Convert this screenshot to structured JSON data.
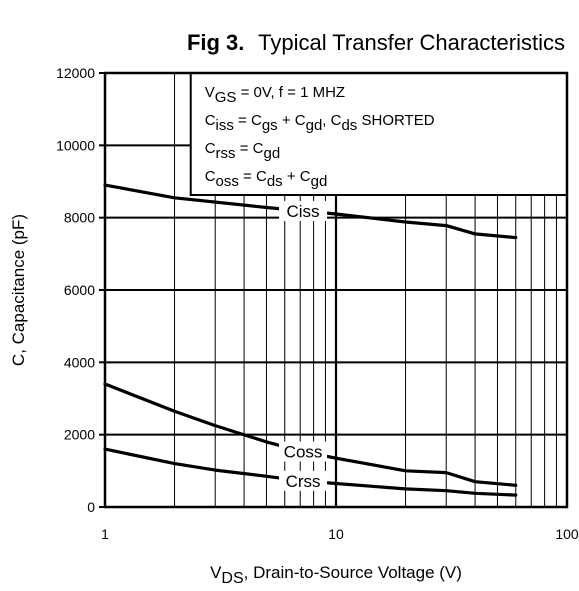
{
  "figure": {
    "label": "Fig 3.",
    "title": "Typical Transfer Characteristics"
  },
  "chart_data": {
    "type": "line",
    "xscale": "log",
    "xlim": [
      1,
      100
    ],
    "ylim": [
      0,
      12000
    ],
    "grid": true,
    "ylabel": "C, Capacitance (pF)",
    "xlabel_main": "V",
    "xlabel_sub": "DS",
    "xlabel_rest": ", Drain-to-Source Voltage (V)",
    "xticks": [
      {
        "value": 1,
        "label": "1"
      },
      {
        "value": 10,
        "label": "10"
      },
      {
        "value": 100,
        "label": "100"
      }
    ],
    "yticks": [
      {
        "value": 0,
        "label": "0"
      },
      {
        "value": 2000,
        "label": "2000"
      },
      {
        "value": 4000,
        "label": "4000"
      },
      {
        "value": 6000,
        "label": "6000"
      },
      {
        "value": 8000,
        "label": "8000"
      },
      {
        "value": 10000,
        "label": "10000"
      },
      {
        "value": 12000,
        "label": "12000"
      }
    ],
    "series": [
      {
        "name": "Ciss",
        "x": [
          1,
          2,
          5,
          10,
          20,
          30,
          40,
          60
        ],
        "y": [
          8900,
          8550,
          8280,
          8100,
          7880,
          7780,
          7550,
          7450
        ]
      },
      {
        "name": "Coss",
        "x": [
          1,
          2,
          3,
          5,
          7,
          10,
          20,
          30,
          40,
          60
        ],
        "y": [
          3400,
          2650,
          2250,
          1800,
          1550,
          1350,
          1000,
          950,
          700,
          600
        ]
      },
      {
        "name": "Crss",
        "x": [
          1,
          2,
          3,
          5,
          7,
          10,
          20,
          30,
          40,
          60
        ],
        "y": [
          1600,
          1200,
          1020,
          850,
          730,
          650,
          500,
          450,
          380,
          330
        ]
      }
    ],
    "annotations": [
      {
        "series": "Ciss",
        "text": "Ciss"
      },
      {
        "series": "Coss",
        "text": "Coss"
      },
      {
        "series": "Crss",
        "text": "Crss"
      }
    ],
    "legend": {
      "placement": "top-right",
      "lines": [
        [
          {
            "t": "V"
          },
          {
            "t": "GS",
            "sub": true
          },
          {
            "t": "  = 0V,       f = 1 MHZ"
          }
        ],
        [
          {
            "t": "C"
          },
          {
            "t": "iss",
            "sub": true
          },
          {
            "t": "  = C"
          },
          {
            "t": "gs",
            "sub": true
          },
          {
            "t": " + C"
          },
          {
            "t": "gd",
            "sub": true
          },
          {
            "t": ",  C"
          },
          {
            "t": "ds",
            "sub": true
          },
          {
            "t": " SHORTED"
          }
        ],
        [
          {
            "t": "C"
          },
          {
            "t": "rss",
            "sub": true
          },
          {
            "t": "  = C"
          },
          {
            "t": "gd",
            "sub": true
          }
        ],
        [
          {
            "t": "C"
          },
          {
            "t": "oss",
            "sub": true
          },
          {
            "t": "  = C"
          },
          {
            "t": "ds",
            "sub": true
          },
          {
            "t": " + C"
          },
          {
            "t": "gd",
            "sub": true
          }
        ]
      ]
    }
  }
}
